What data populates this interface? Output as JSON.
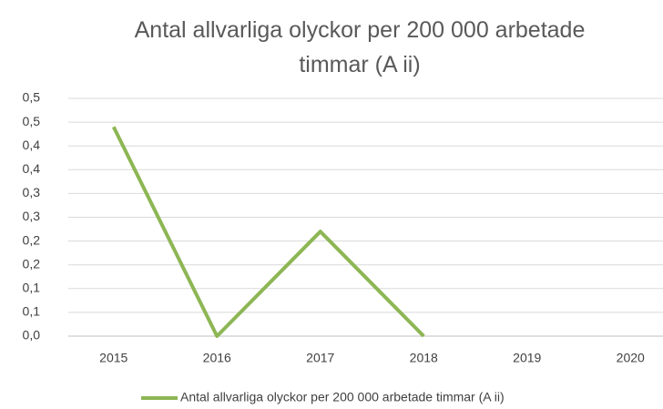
{
  "chart_data": {
    "type": "line",
    "title": "Antal allvarliga olyckor per 200 000 arbetade timmar (A ii)",
    "categories": [
      "2015",
      "2016",
      "2017",
      "2018",
      "2019",
      "2020"
    ],
    "series": [
      {
        "name": "Antal allvarliga olyckor per 200 000 arbetade timmar (A ii)",
        "color": "#8db654",
        "values": [
          0.44,
          0,
          0.22,
          0,
          null,
          null
        ]
      }
    ],
    "ylim": [
      0,
      0.5
    ],
    "yticks": [
      {
        "value": 0,
        "label": "0,0"
      },
      {
        "value": 0.05,
        "label": "0,1"
      },
      {
        "value": 0.1,
        "label": "0,1"
      },
      {
        "value": 0.15,
        "label": "0,2"
      },
      {
        "value": 0.2,
        "label": "0,2"
      },
      {
        "value": 0.25,
        "label": "0,3"
      },
      {
        "value": 0.3,
        "label": "0,3"
      },
      {
        "value": 0.35,
        "label": "0,4"
      },
      {
        "value": 0.4,
        "label": "0,4"
      },
      {
        "value": 0.45,
        "label": "0,5"
      },
      {
        "value": 0.5,
        "label": "0,5"
      }
    ],
    "grid": true,
    "legend": "bottom"
  }
}
